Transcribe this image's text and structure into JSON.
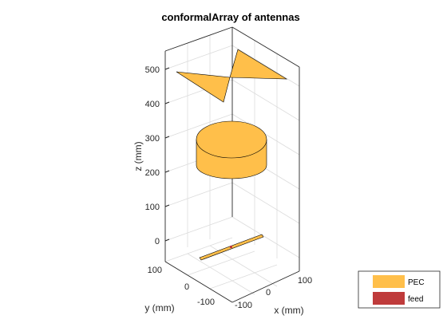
{
  "chart_data": {
    "type": "3d-antenna-geometry",
    "title": "conformalArray of antennas",
    "xlabel": "x (mm)",
    "ylabel": "y (mm)",
    "zlabel": "z (mm)",
    "x_ticks": [
      "-100",
      "0",
      "100"
    ],
    "y_ticks": [
      "100",
      "0",
      "-100"
    ],
    "z_ticks": [
      "0",
      "100",
      "200",
      "300",
      "400",
      "500"
    ],
    "zlim": [
      -50,
      560
    ],
    "grid": true,
    "legend": {
      "placement": "bottom-right",
      "entries": [
        {
          "label": "PEC",
          "color": "#FFBF4A"
        },
        {
          "label": "feed",
          "color": "#BF3B3B"
        }
      ]
    }
  },
  "colors": {
    "pec": "#FFBF4A",
    "feed": "#BF3B3B",
    "edge": "#000000"
  }
}
